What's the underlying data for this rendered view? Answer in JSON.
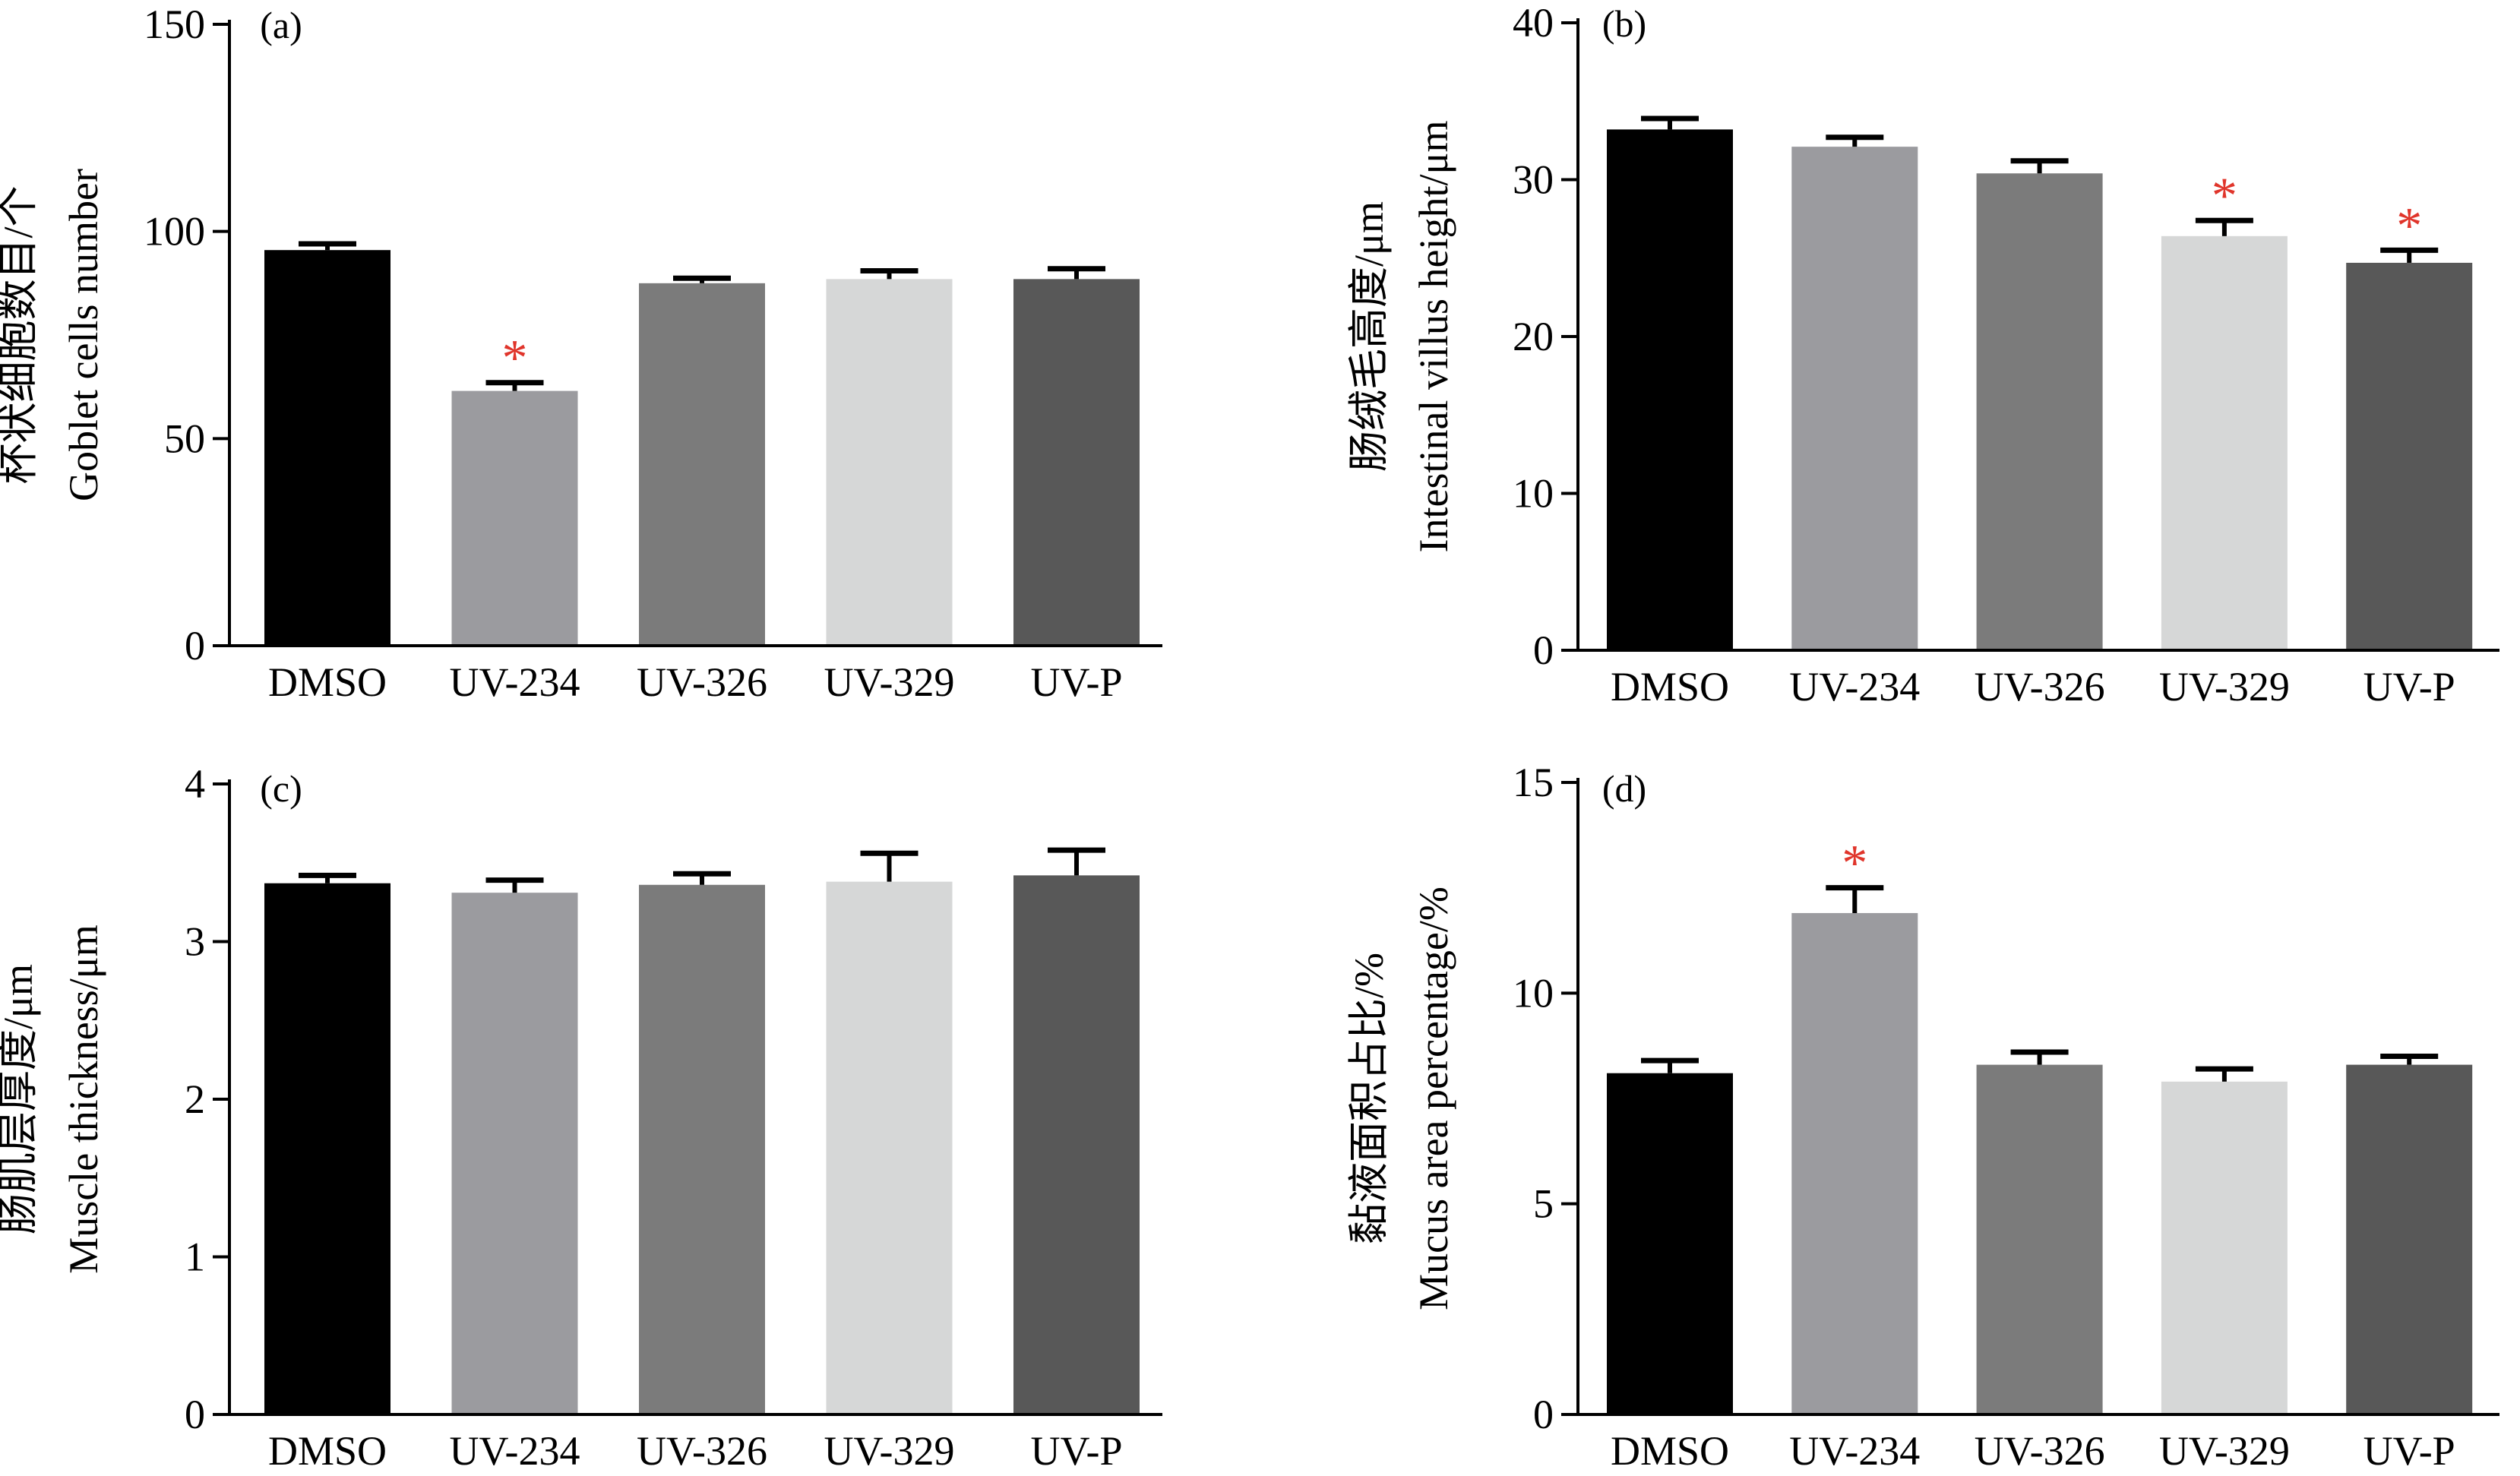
{
  "chart_data": [
    {
      "type": "bar",
      "panel_label": "(a)",
      "ylabel_lines": [
        "杯状细胞数目/个",
        "Goblet cells number"
      ],
      "categories": [
        "DMSO",
        "UV-234",
        "UV-326",
        "UV-329",
        "UV-P"
      ],
      "values": [
        95.5,
        61.5,
        87.5,
        88.5,
        88.5
      ],
      "errors": [
        1.5,
        2.0,
        1.2,
        2.0,
        2.5
      ],
      "significant": [
        false,
        true,
        false,
        false,
        false
      ],
      "significance_mark": "*",
      "ylim": [
        0,
        150
      ],
      "yticks": [
        0,
        50,
        100,
        150
      ],
      "ytick_labels": [
        "0",
        "50",
        "100",
        "150"
      ]
    },
    {
      "type": "bar",
      "panel_label": "(b)",
      "ylabel_lines": [
        "肠绒毛高度/μm",
        "Intestinal villus height/μm"
      ],
      "categories": [
        "DMSO",
        "UV-234",
        "UV-326",
        "UV-329",
        "UV-P"
      ],
      "values": [
        33.2,
        32.1,
        30.4,
        26.4,
        24.7
      ],
      "errors": [
        0.7,
        0.6,
        0.8,
        1.0,
        0.8
      ],
      "significant": [
        false,
        false,
        false,
        true,
        true
      ],
      "significance_mark": "*",
      "ylim": [
        0,
        40
      ],
      "yticks": [
        0,
        10,
        20,
        30,
        40
      ],
      "ytick_labels": [
        "0",
        "10",
        "20",
        "30",
        "40"
      ]
    },
    {
      "type": "bar",
      "panel_label": "(c)",
      "ylabel_lines": [
        "肠肌层厚度/μm",
        "Muscle thickness/μm"
      ],
      "categories": [
        "DMSO",
        "UV-234",
        "UV-326",
        "UV-329",
        "UV-P"
      ],
      "values": [
        3.37,
        3.31,
        3.36,
        3.38,
        3.42
      ],
      "errors": [
        0.05,
        0.08,
        0.07,
        0.18,
        0.16
      ],
      "significant": [
        false,
        false,
        false,
        false,
        false
      ],
      "significance_mark": "*",
      "ylim": [
        0,
        4
      ],
      "yticks": [
        0,
        1,
        2,
        3,
        4
      ],
      "ytick_labels": [
        "0",
        "1",
        "2",
        "3",
        "4"
      ]
    },
    {
      "type": "bar",
      "panel_label": "(d)",
      "ylabel_lines": [
        "黏液面积占比/%",
        "Mucus area percentage/%"
      ],
      "categories": [
        "DMSO",
        "UV-234",
        "UV-326",
        "UV-329",
        "UV-P"
      ],
      "values": [
        8.1,
        11.9,
        8.3,
        7.9,
        8.3
      ],
      "errors": [
        0.3,
        0.6,
        0.3,
        0.3,
        0.2
      ],
      "significant": [
        false,
        true,
        false,
        false,
        false
      ],
      "significance_mark": "*",
      "ylim": [
        0,
        15
      ],
      "yticks": [
        0,
        5,
        10,
        15
      ],
      "ytick_labels": [
        "0",
        "5",
        "10",
        "15"
      ]
    }
  ],
  "colors": {
    "bars": [
      "#000000",
      "#9b9b9f",
      "#7b7b7b",
      "#d6d7d7",
      "#585858"
    ],
    "axis": "#000000",
    "significance": "#e0352b"
  }
}
